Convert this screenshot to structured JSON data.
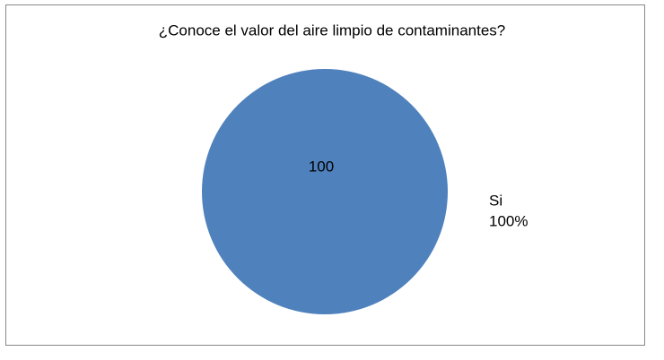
{
  "chart_data": {
    "type": "pie",
    "title": "¿Conoce el valor del aire limpio de contaminantes?",
    "categories": [
      "Si"
    ],
    "values": [
      100
    ],
    "value_labels": [
      "100%"
    ],
    "colors": [
      "#4f81bd"
    ]
  }
}
